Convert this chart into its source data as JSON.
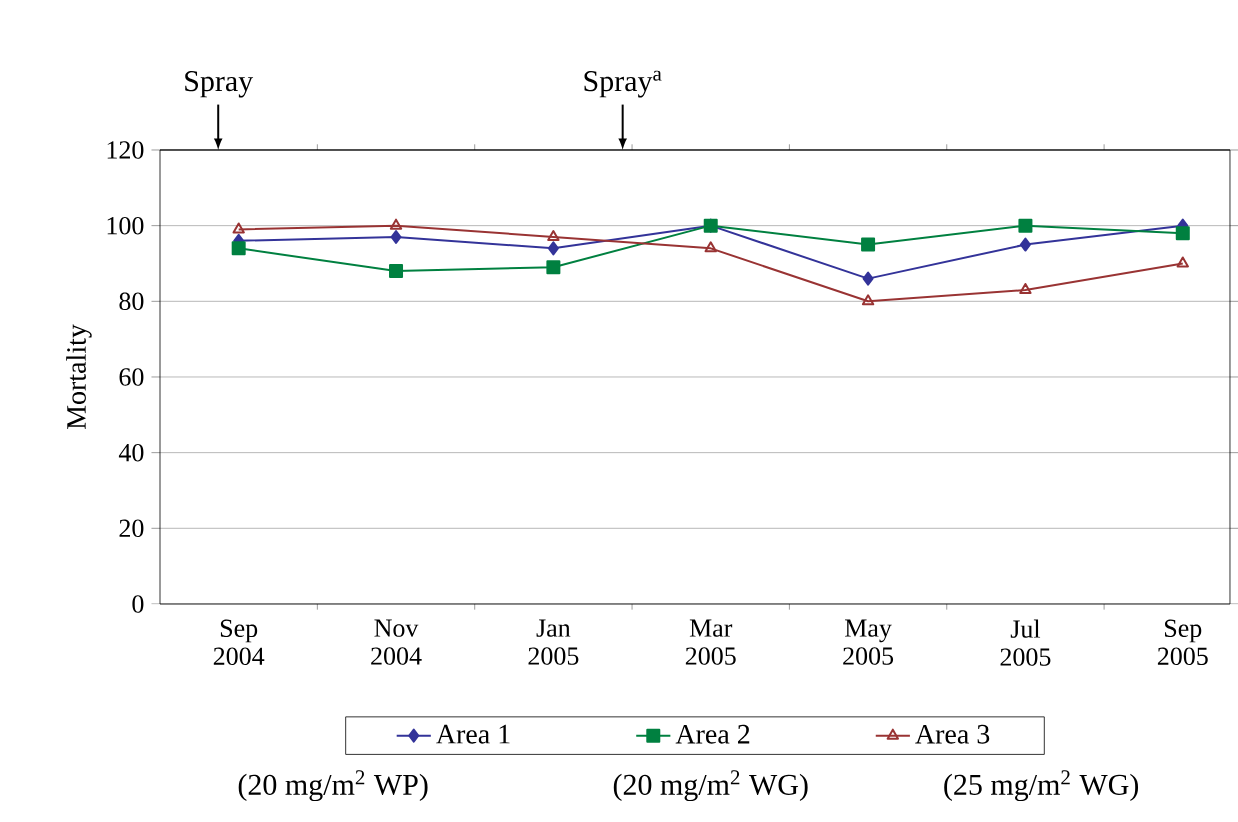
{
  "chart_data": {
    "type": "line",
    "categories": [
      "Sep\n2004",
      "Nov\n2004",
      "Jan\n2005",
      "Mar\n2005",
      "May\n2005",
      "Jul\n2005",
      "Sep\n2005"
    ],
    "series": [
      {
        "name": "Area 1",
        "color": "#333399",
        "marker": "diamond",
        "values": [
          96,
          97,
          94,
          100,
          86,
          95,
          100
        ]
      },
      {
        "name": "Area 2",
        "color": "#008040",
        "marker": "square",
        "values": [
          94,
          88,
          89,
          100,
          95,
          100,
          98
        ]
      },
      {
        "name": "Area 3",
        "color": "#993333",
        "marker": "triangle",
        "values": [
          99,
          100,
          97,
          94,
          80,
          83,
          90
        ]
      }
    ],
    "ylabel": "Mortality",
    "ylim": [
      0,
      120
    ],
    "yticks": [
      0,
      20,
      40,
      60,
      80,
      100,
      120
    ],
    "grid": "y",
    "legend": "bottom",
    "annotations": [
      "Spray",
      "Spray$^{a}$",
      "(20 mg/m$^{2}$ WP)",
      "(20 mg/m$^{2}$ WG)",
      "(25 mg/m$^{2}$ WG)"
    ]
  }
}
